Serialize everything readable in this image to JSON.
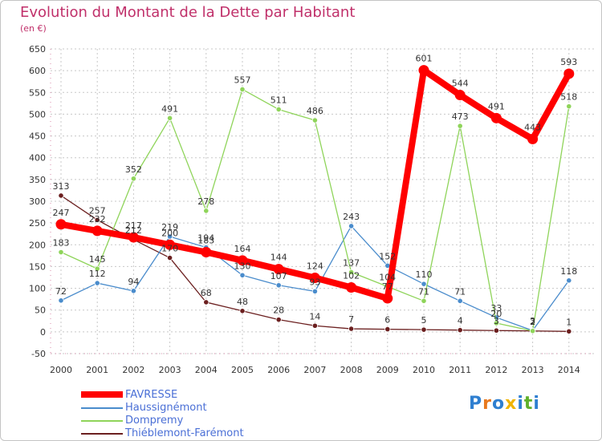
{
  "title": "Evolution du Montant de la Dette par Habitant",
  "unit": "(en €)",
  "logo": "Proxiti",
  "chart_data": {
    "type": "line",
    "title": "Evolution du Montant de la Dette par Habitant",
    "ylabel": "(en €)",
    "x": [
      "2000",
      "2001",
      "2002",
      "2003",
      "2004",
      "2005",
      "2006",
      "2007",
      "2008",
      "2009",
      "2010",
      "2011",
      "2012",
      "2013",
      "2014"
    ],
    "ylim": [
      -50,
      650
    ],
    "yticks": [
      -50,
      0,
      50,
      100,
      150,
      200,
      250,
      300,
      350,
      400,
      450,
      500,
      550,
      600,
      650
    ],
    "grid": true,
    "legend_position": "bottom-left",
    "series": [
      {
        "name": "FAVRESSE",
        "color": "#ff0000",
        "values": [
          247,
          232,
          217,
          200,
          183,
          164,
          144,
          124,
          102,
          77,
          601,
          544,
          491,
          443,
          593
        ],
        "labels": [
          "247",
          "232",
          "217",
          "200",
          "183",
          "164",
          "144",
          "124",
          "102",
          "77",
          "601",
          "544",
          "491",
          "443",
          "593"
        ]
      },
      {
        "name": "Haussignémont",
        "color": "#4a8ccc",
        "values": [
          72,
          112,
          94,
          219,
          194,
          130,
          107,
          93,
          243,
          152,
          110,
          71,
          33,
          3,
          118
        ],
        "labels": [
          "72",
          "112",
          "94",
          "219",
          "194",
          "130",
          "107",
          "93",
          "243",
          "152",
          "110",
          "71",
          "33",
          "3",
          "118"
        ]
      },
      {
        "name": "Dompremy",
        "color": "#8fd45a",
        "values": [
          183,
          145,
          352,
          491,
          278,
          557,
          511,
          486,
          137,
          104,
          71,
          473,
          20,
          2,
          518
        ],
        "labels": [
          "183",
          "145",
          "352",
          "491",
          "278",
          "557",
          "511",
          "486",
          "137",
          "104",
          "71",
          "473",
          "20",
          "2",
          "518"
        ]
      },
      {
        "name": "Thiéblemont-Farémont",
        "color": "#6b1f1f",
        "values": [
          313,
          257,
          212,
          170,
          68,
          48,
          28,
          14,
          7,
          6,
          5,
          4,
          3,
          2,
          1
        ],
        "labels": [
          "313",
          "257",
          "212",
          "170",
          "68",
          "48",
          "28",
          "14",
          "7",
          "6",
          "5",
          "4",
          "3",
          "2",
          "1"
        ]
      }
    ]
  }
}
